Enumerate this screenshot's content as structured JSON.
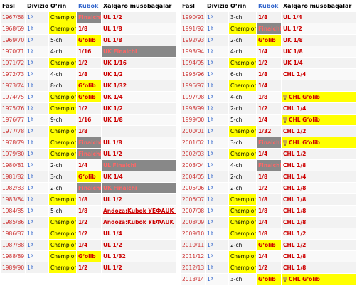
{
  "headers": {
    "season": "Fasl",
    "division": "Divizion",
    "place": "O‘rin",
    "cup": "Kubok",
    "intl": "Xalqaro musobaqalar"
  },
  "left_rows": [
    {
      "season": "1967/68",
      "div": "1ª",
      "place": "Chempion",
      "cup": "Finalchi",
      "intl": "UL 1/2",
      "place_hl": "yellow",
      "cup_hl": "gray",
      "intl_hl": "",
      "cup_icon": false,
      "intl_icon": false
    },
    {
      "season": "1968/69",
      "div": "1ª",
      "place": "Chempion",
      "cup": "1/8",
      "intl": "UL 1/8",
      "place_hl": "yellow",
      "cup_hl": "",
      "intl_hl": "",
      "cup_icon": false,
      "intl_icon": false
    },
    {
      "season": "1969/70",
      "div": "1ª",
      "place": "5-chi",
      "cup": "G‘olib",
      "intl": "UL 1/8",
      "place_hl": "",
      "cup_hl": "yellow",
      "intl_hl": "",
      "cup_icon": false,
      "intl_icon": false
    },
    {
      "season": "1970/71",
      "div": "1ª",
      "place": "4-chi",
      "cup": "1/16",
      "intl": "UK Finalchi",
      "place_hl": "",
      "cup_hl": "",
      "intl_hl": "gray",
      "cup_icon": false,
      "intl_icon": false
    },
    {
      "season": "1971/72",
      "div": "1ª",
      "place": "Chempion",
      "cup": "1/2",
      "intl": "UK 1/16",
      "place_hl": "yellow",
      "cup_hl": "",
      "intl_hl": "",
      "cup_icon": false,
      "intl_icon": false
    },
    {
      "season": "1972/73",
      "div": "1ª",
      "place": "4-chi",
      "cup": "1/8",
      "intl": "UK 1/2",
      "place_hl": "",
      "cup_hl": "",
      "intl_hl": "",
      "cup_icon": false,
      "intl_icon": false
    },
    {
      "season": "1973/74",
      "div": "1ª",
      "place": "8-chi",
      "cup": "G‘olib",
      "intl": "UK 1/32",
      "place_hl": "",
      "cup_hl": "yellow",
      "intl_hl": "",
      "cup_icon": false,
      "intl_icon": false
    },
    {
      "season": "1974/75",
      "div": "1ª",
      "place": "Chempion",
      "cup": "G‘olib",
      "intl": "UK 1/4",
      "place_hl": "yellow",
      "cup_hl": "yellow",
      "intl_hl": "",
      "cup_icon": false,
      "intl_icon": false
    },
    {
      "season": "1975/76",
      "div": "1ª",
      "place": "Chempion",
      "cup": "1/2",
      "intl": "UK 1/2",
      "place_hl": "yellow",
      "cup_hl": "",
      "intl_hl": "",
      "cup_icon": false,
      "intl_icon": false
    },
    {
      "season": "1976/77",
      "div": "1ª",
      "place": "9-chi",
      "cup": "1/16",
      "intl": "UK 1/8",
      "place_hl": "",
      "cup_hl": "",
      "intl_hl": "",
      "cup_icon": false,
      "intl_icon": false
    },
    {
      "season": "1977/78",
      "div": "1ª",
      "place": "Chempion",
      "cup": "1/8",
      "intl": "",
      "place_hl": "yellow",
      "cup_hl": "",
      "intl_hl": "",
      "cup_icon": false,
      "intl_icon": false
    },
    {
      "season": "1978/79",
      "div": "1ª",
      "place": "Chempion",
      "cup": "Finalchi",
      "intl": "UL 1/8",
      "place_hl": "yellow",
      "cup_hl": "gray",
      "intl_hl": "",
      "cup_icon": false,
      "intl_icon": false
    },
    {
      "season": "1979/80",
      "div": "1ª",
      "place": "Chempion",
      "cup": "Finalchi",
      "intl": "UL 1/2",
      "place_hl": "yellow",
      "cup_hl": "gray",
      "intl_hl": "",
      "cup_icon": false,
      "intl_icon": false
    },
    {
      "season": "1980/81",
      "div": "1ª",
      "place": "2-chi",
      "cup": "1/4",
      "intl": "UL Finalchi",
      "place_hl": "",
      "cup_hl": "",
      "intl_hl": "gray",
      "cup_icon": false,
      "intl_icon": false
    },
    {
      "season": "1981/82",
      "div": "1ª",
      "place": "3-chi",
      "cup": "G‘olib",
      "intl": "UK 1/4",
      "place_hl": "",
      "cup_hl": "yellow",
      "intl_hl": "",
      "cup_icon": false,
      "intl_icon": false
    },
    {
      "season": "1982/83",
      "div": "1ª",
      "place": "2-chi",
      "cup": "Finalchi",
      "intl": "UK Finalchi",
      "place_hl": "",
      "cup_hl": "gray",
      "intl_hl": "gray",
      "cup_icon": false,
      "intl_icon": false
    },
    {
      "season": "1983/84",
      "div": "1ª",
      "place": "Chempion",
      "cup": "1/8",
      "intl": "UL 1/2",
      "place_hl": "yellow",
      "cup_hl": "",
      "intl_hl": "",
      "cup_icon": false,
      "intl_icon": false
    },
    {
      "season": "1984/85",
      "div": "1ª",
      "place": "5-chi",
      "cup": "1/8",
      "intl": "Andoza:Kubok УЕФАUK G‘olib",
      "place_hl": "",
      "cup_hl": "",
      "intl_hl": "underline",
      "cup_icon": false,
      "intl_icon": false
    },
    {
      "season": "1985/86",
      "div": "1ª",
      "place": "Chempion",
      "cup": "1/2",
      "intl": "Andoza:Kubok УЕФАUK G‘olib",
      "place_hl": "yellow",
      "cup_hl": "",
      "intl_hl": "underline",
      "cup_icon": false,
      "intl_icon": false
    },
    {
      "season": "1986/87",
      "div": "1ª",
      "place": "Chempion",
      "cup": "1/2",
      "intl": "UL 1/4",
      "place_hl": "yellow",
      "cup_hl": "",
      "intl_hl": "",
      "cup_icon": false,
      "intl_icon": false
    },
    {
      "season": "1987/88",
      "div": "1ª",
      "place": "Chempion",
      "cup": "1/4",
      "intl": "UL 1/2",
      "place_hl": "yellow",
      "cup_hl": "",
      "intl_hl": "",
      "cup_icon": false,
      "intl_icon": false
    },
    {
      "season": "1988/89",
      "div": "1ª",
      "place": "Chempion",
      "cup": "G‘olib",
      "intl": "UL 1/32",
      "place_hl": "yellow",
      "cup_hl": "yellow",
      "intl_hl": "",
      "cup_icon": false,
      "intl_icon": false
    },
    {
      "season": "1989/90",
      "div": "1ª",
      "place": "Chempion",
      "cup": "1/2",
      "intl": "UL 1/2",
      "place_hl": "yellow",
      "cup_hl": "",
      "intl_hl": "",
      "cup_icon": false,
      "intl_icon": false
    }
  ],
  "right_rows": [
    {
      "season": "1990/91",
      "div": "1ª",
      "place": "3-chi",
      "cup": "1/8",
      "intl": "UL 1/4",
      "place_hl": "",
      "cup_hl": "",
      "intl_hl": "",
      "cup_icon": false,
      "intl_icon": false
    },
    {
      "season": "1991/92",
      "div": "1ª",
      "place": "Chempion",
      "cup": "Finalchi",
      "intl": "UL 1/2",
      "place_hl": "yellow",
      "cup_hl": "gray",
      "intl_hl": "",
      "cup_icon": false,
      "intl_icon": false
    },
    {
      "season": "1992/93",
      "div": "1ª",
      "place": "2-chi",
      "cup": "G‘olib",
      "intl": "UK 1/8",
      "place_hl": "",
      "cup_hl": "yellow",
      "intl_hl": "",
      "cup_icon": false,
      "intl_icon": false
    },
    {
      "season": "1993/94",
      "div": "1ª",
      "place": "4-chi",
      "cup": "1/4",
      "intl": "UK 1/8",
      "place_hl": "",
      "cup_hl": "",
      "intl_hl": "",
      "cup_icon": false,
      "intl_icon": false
    },
    {
      "season": "1994/95",
      "div": "1ª",
      "place": "Chempion",
      "cup": "1/2",
      "intl": "UK 1/4",
      "place_hl": "yellow",
      "cup_hl": "",
      "intl_hl": "",
      "cup_icon": false,
      "intl_icon": false
    },
    {
      "season": "1995/96",
      "div": "1ª",
      "place": "6-chi",
      "cup": "1/8",
      "intl": "CHL 1/4",
      "place_hl": "",
      "cup_hl": "",
      "intl_hl": "",
      "cup_icon": false,
      "intl_icon": false
    },
    {
      "season": "1996/97",
      "div": "1ª",
      "place": "Chempion",
      "cup": "1/4",
      "intl": "",
      "place_hl": "yellow",
      "cup_hl": "",
      "intl_hl": "",
      "cup_icon": false,
      "intl_icon": false
    },
    {
      "season": "1997/98",
      "div": "1ª",
      "place": "4-chi",
      "cup": "1/8",
      "intl": "CHL G‘olib",
      "place_hl": "",
      "cup_hl": "",
      "intl_hl": "yellow",
      "cup_icon": false,
      "intl_icon": true
    },
    {
      "season": "1998/99",
      "div": "1ª",
      "place": "2-chi",
      "cup": "1/2",
      "intl": "CHL 1/4",
      "place_hl": "",
      "cup_hl": "",
      "intl_hl": "",
      "cup_icon": false,
      "intl_icon": false
    },
    {
      "season": "1999/00",
      "div": "1ª",
      "place": "5-chi",
      "cup": "1/4",
      "intl": "CHL G‘olib",
      "place_hl": "",
      "cup_hl": "",
      "intl_hl": "yellow",
      "cup_icon": false,
      "intl_icon": true
    },
    {
      "season": "2000/01",
      "div": "1ª",
      "place": "Chempion",
      "cup": "1/32",
      "intl": "CHL 1/2",
      "place_hl": "yellow",
      "cup_hl": "",
      "intl_hl": "",
      "cup_icon": false,
      "intl_icon": false
    },
    {
      "season": "2001/02",
      "div": "1ª",
      "place": "3-chi",
      "cup": "Finalchi",
      "intl": "CHL G‘olib",
      "place_hl": "",
      "cup_hl": "gray",
      "intl_hl": "yellow",
      "cup_icon": false,
      "intl_icon": true
    },
    {
      "season": "2002/03",
      "div": "1ª",
      "place": "Chempion",
      "cup": "1/4",
      "intl": "CHL 1/2",
      "place_hl": "yellow",
      "cup_hl": "",
      "intl_hl": "",
      "cup_icon": false,
      "intl_icon": false
    },
    {
      "season": "2003/04",
      "div": "1ª",
      "place": "4-chi",
      "cup": "Finalchi",
      "intl": "CHL 1/8",
      "place_hl": "",
      "cup_hl": "gray",
      "intl_hl": "",
      "cup_icon": false,
      "intl_icon": false
    },
    {
      "season": "2004/05",
      "div": "1ª",
      "place": "2-chi",
      "cup": "1/8",
      "intl": "CHL 1/4",
      "place_hl": "",
      "cup_hl": "",
      "intl_hl": "",
      "cup_icon": false,
      "intl_icon": false
    },
    {
      "season": "2005/06",
      "div": "1ª",
      "place": "2-chi",
      "cup": "1/2",
      "intl": "CHL 1/8",
      "place_hl": "",
      "cup_hl": "",
      "intl_hl": "",
      "cup_icon": false,
      "intl_icon": false
    },
    {
      "season": "2006/07",
      "div": "1ª",
      "place": "Chempion",
      "cup": "1/8",
      "intl": "CHL 1/8",
      "place_hl": "yellow",
      "cup_hl": "",
      "intl_hl": "",
      "cup_icon": false,
      "intl_icon": false
    },
    {
      "season": "2007/08",
      "div": "1ª",
      "place": "Chempion",
      "cup": "1/8",
      "intl": "CHL 1/8",
      "place_hl": "yellow",
      "cup_hl": "",
      "intl_hl": "",
      "cup_icon": false,
      "intl_icon": false
    },
    {
      "season": "2008/09",
      "div": "1ª",
      "place": "Chempion",
      "cup": "1/4",
      "intl": "CHL 1/8",
      "place_hl": "yellow",
      "cup_hl": "",
      "intl_hl": "",
      "cup_icon": false,
      "intl_icon": false
    },
    {
      "season": "2009/10",
      "div": "1ª",
      "place": "Chempion",
      "cup": "1/8",
      "intl": "CHL 1/2",
      "place_hl": "yellow",
      "cup_hl": "",
      "intl_hl": "",
      "cup_icon": false,
      "intl_icon": false
    },
    {
      "season": "2010/11",
      "div": "1ª",
      "place": "2-chi",
      "cup": "G‘olib",
      "intl": "CHL 1/2",
      "place_hl": "",
      "cup_hl": "yellow",
      "intl_hl": "",
      "cup_icon": false,
      "intl_icon": false
    },
    {
      "season": "2011/12",
      "div": "1ª",
      "place": "Chempion",
      "cup": "1/4",
      "intl": "CHL 1/8",
      "place_hl": "yellow",
      "cup_hl": "",
      "intl_hl": "",
      "cup_icon": false,
      "intl_icon": false
    },
    {
      "season": "2012/13",
      "div": "1ª",
      "place": "Chempion",
      "cup": "1/2",
      "intl": "CHL 1/8",
      "place_hl": "yellow",
      "cup_hl": "",
      "intl_hl": "",
      "cup_icon": false,
      "intl_icon": false
    },
    {
      "season": "2013/14",
      "div": "1ª",
      "place": "3-chi",
      "cup": "G‘olib",
      "intl": "CHL G‘olib",
      "place_hl": "",
      "cup_hl": "yellow",
      "intl_hl": "yellow",
      "cup_icon": false,
      "intl_icon": true
    }
  ]
}
